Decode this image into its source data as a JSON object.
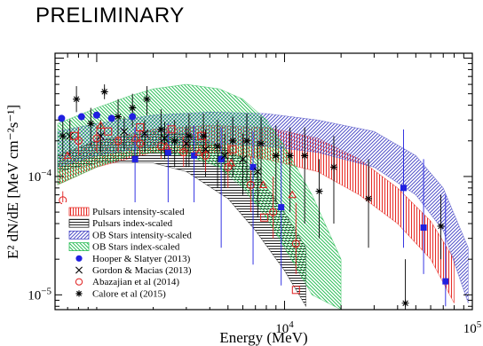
{
  "stamp": "PRELIMINARY",
  "chart_data": {
    "type": "scatter",
    "title": "",
    "xlabel": "Energy (MeV)",
    "ylabel": "E² dN/dE [MeV cm⁻²s⁻¹]",
    "xscale": "log",
    "yscale": "log",
    "xlim": [
      600,
      100000
    ],
    "ylim": [
      7.5e-06,
      0.0011
    ],
    "ticks": {
      "x": [
        {
          "value": 10000,
          "base": "10",
          "exp": "4"
        },
        {
          "value": 100000,
          "base": "10",
          "exp": "5"
        }
      ],
      "y": [
        {
          "value": 0.0001,
          "base": "10",
          "exp": "−4"
        },
        {
          "value": 1e-05,
          "base": "10",
          "exp": "−5"
        }
      ]
    },
    "legend_position": "bottom-left",
    "bands": [
      {
        "name": "Pulsars intensity-scaled",
        "color": "#e8302a",
        "pattern": "vertical",
        "x": [
          620,
          1000,
          2000,
          4000,
          8000,
          15000,
          25000,
          40000,
          60000,
          80000
        ],
        "lower": [
          8.5e-05,
          0.00012,
          0.00016,
          0.00016,
          0.00014,
          0.00011,
          7e-05,
          4e-05,
          2e-05,
          8.5e-06
        ],
        "upper": [
          0.00015,
          0.0002,
          0.00025,
          0.00027,
          0.00026,
          0.00021,
          0.00014,
          8e-05,
          4.2e-05,
          2e-05
        ]
      },
      {
        "name": "Pulsars index-scaled",
        "color": "#222222",
        "pattern": "horizontal",
        "x": [
          620,
          1000,
          2000,
          3000,
          5000,
          7000,
          10000,
          13000
        ],
        "lower": [
          0.00011,
          0.00013,
          0.00013,
          0.00011,
          6.5e-05,
          3.5e-05,
          1.6e-05,
          8e-06
        ],
        "upper": [
          0.00015,
          0.0002,
          0.00024,
          0.00023,
          0.00017,
          0.00011,
          5e-05,
          2.5e-05
        ]
      },
      {
        "name": "OB Stars intensity-scaled",
        "color": "#5050c8",
        "pattern": "diagonal-up",
        "x": [
          620,
          1000,
          2000,
          4000,
          8000,
          15000,
          30000,
          50000,
          70000,
          95000
        ],
        "lower": [
          0.00012,
          0.00015,
          0.00018,
          0.00019,
          0.00018,
          0.00016,
          0.00012,
          7e-05,
          3.5e-05,
          8.5e-06
        ],
        "upper": [
          0.00024,
          0.00028,
          0.00033,
          0.00035,
          0.00034,
          0.0003,
          0.00024,
          0.00015,
          8e-05,
          2.5e-05
        ]
      },
      {
        "name": "OB Stars index-scaled",
        "color": "#2fbf5a",
        "pattern": "diagonal-down",
        "x": [
          620,
          1000,
          1500,
          2000,
          3000,
          4500,
          6000,
          8000,
          10000,
          14000,
          20000
        ],
        "lower": [
          8.5e-05,
          0.00012,
          0.00015,
          0.00016,
          0.00015,
          0.00012,
          8e-05,
          4.5e-05,
          2.5e-05,
          1e-05,
          7.5e-06
        ],
        "upper": [
          0.00028,
          0.00038,
          0.00048,
          0.00055,
          0.0006,
          0.00055,
          0.00045,
          0.0003,
          0.00018,
          7e-05,
          2e-05
        ]
      }
    ],
    "series": [
      {
        "name": "Hooper & Slatyer (2013)",
        "marker": "filled-circle",
        "color": "#2020e0",
        "x": [
          650,
          830,
          1000,
          1200,
          1550
        ],
        "y": [
          0.00031,
          0.00032,
          0.00033,
          0.00031,
          0.00032
        ]
      },
      {
        "name": "Hooper & Slatyer (2013)",
        "marker": "filled-square",
        "color": "#2020e0",
        "x": [
          1600,
          2400,
          3300,
          4600,
          6800,
          9600,
          43000,
          55000,
          72000
        ],
        "y": [
          0.00014,
          0.00016,
          0.00015,
          0.00014,
          0.00012,
          5.5e-05,
          8e-05,
          3.7e-05,
          1.3e-05
        ],
        "err_low": [
          3.5e-05,
          3e-05,
          3e-05,
          2.5e-05,
          1.8e-05,
          1.2e-05,
          2.5e-05,
          1.5e-05,
          8e-06
        ],
        "err_high": [
          0.00026,
          0.00028,
          0.00027,
          0.00026,
          0.00024,
          0.00018,
          0.00025,
          0.00014,
          7e-05
        ]
      },
      {
        "name": "Gordon & Macias (2013)",
        "marker": "cross",
        "color": "#000000",
        "x": [
          720,
          1050,
          1400,
          1800,
          2300,
          3000,
          3800,
          4800,
          6000,
          7200
        ],
        "y": [
          0.00022,
          0.00022,
          0.00024,
          0.00023,
          0.00021,
          0.00019,
          0.00017,
          0.00015,
          0.00014,
          0.00011
        ],
        "err_low": [
          0.00015,
          0.00016,
          0.00017,
          0.00016,
          0.00014,
          0.00012,
          0.0001,
          8e-05,
          7e-05,
          4.5e-05
        ],
        "err_high": [
          0.0003,
          0.0003,
          0.00032,
          0.0003,
          0.00029,
          0.00027,
          0.00025,
          0.00023,
          0.00023,
          0.0002
        ]
      },
      {
        "name": "Abazajian et al (2014)",
        "marker": "open-circle",
        "color": "#e02020",
        "x": [
          660,
          800,
          1000,
          1300,
          1700,
          2200,
          2900,
          3800,
          5000,
          6600,
          8700,
          11500
        ],
        "y": [
          6.3e-05,
          0.0002,
          0.00021,
          0.0002,
          0.00019,
          0.00018,
          0.00016,
          0.00015,
          0.00012,
          8.5e-05,
          5e-05,
          2.7e-05
        ],
        "err_low": [
          5e-05,
          0.00015,
          0.00016,
          0.00016,
          0.00015,
          0.00014,
          0.00012,
          0.00011,
          8e-05,
          5e-05,
          3e-05,
          1.5e-05
        ],
        "err_high": [
          7.5e-05,
          0.00026,
          0.00027,
          0.00026,
          0.00025,
          0.00024,
          0.00022,
          0.00021,
          0.00019,
          0.00015,
          0.0001,
          6e-05
        ]
      },
      {
        "name": "Abazajian et al (2014)",
        "marker": "open-square",
        "color": "#e02020",
        "x": [
          760,
          1150,
          1700,
          2500,
          3600,
          5300,
          7800,
          11500
        ],
        "y": [
          0.00022,
          0.00024,
          0.00026,
          0.00025,
          0.00022,
          0.00017,
          4.5e-05,
          1.1e-05
        ]
      },
      {
        "name": "Abazajian et al (2014)",
        "marker": "open-triangle",
        "color": "#e02020",
        "x": [
          700,
          1050,
          1600,
          2350,
          3500,
          5200,
          7700,
          11000
        ],
        "y": [
          0.00015,
          0.00027,
          0.00021,
          0.00018,
          0.00016,
          0.00013,
          8.5e-05,
          7e-05
        ]
      },
      {
        "name": "Calore et al (2015)",
        "marker": "star",
        "color": "#000000",
        "x": [
          660,
          780,
          930,
          1100,
          1300,
          1550,
          1850,
          2200,
          2600,
          3100,
          3700,
          4400,
          5300,
          6300,
          7500,
          9000,
          10700,
          12800,
          15300,
          18300,
          28000,
          44000,
          68000
        ],
        "y": [
          0.00022,
          0.00045,
          0.00028,
          0.00052,
          0.00032,
          0.00038,
          0.00045,
          0.00025,
          0.0002,
          0.00022,
          0.00022,
          0.00018,
          0.0002,
          0.0002,
          0.00019,
          0.00015,
          0.00015,
          0.00015,
          7.5e-05,
          0.00012,
          6.5e-05,
          8.5e-06,
          3.8e-05
        ],
        "err_low": [
          0.00015,
          0.00035,
          0.00018,
          0.00045,
          0.00022,
          0.00026,
          0.00033,
          0.00015,
          0.00012,
          0.00012,
          0.00012,
          8e-05,
          0.0001,
          9e-05,
          8e-05,
          6e-05,
          5e-05,
          4e-05,
          3e-05,
          4e-05,
          2.5e-05,
          5e-06,
          2e-05
        ],
        "err_high": [
          0.0003,
          0.00058,
          0.00038,
          0.0006,
          0.00045,
          0.0005,
          0.00058,
          0.00037,
          0.0003,
          0.00034,
          0.00034,
          0.0003,
          0.00032,
          0.00034,
          0.00032,
          0.00027,
          0.00026,
          0.00026,
          0.00014,
          0.00022,
          0.00014,
          2e-05,
          7e-05
        ]
      }
    ],
    "legend": [
      {
        "label": "Pulsars intensity-scaled",
        "kind": "band",
        "color": "#e8302a",
        "pattern": "vertical"
      },
      {
        "label": "Pulsars index-scaled",
        "kind": "band",
        "color": "#222222",
        "pattern": "horizontal"
      },
      {
        "label": "OB Stars intensity-scaled",
        "kind": "band",
        "color": "#5050c8",
        "pattern": "diagonal-up"
      },
      {
        "label": "OB Stars index-scaled",
        "kind": "band",
        "color": "#2fbf5a",
        "pattern": "diagonal-down"
      },
      {
        "label": "Hooper & Slatyer (2013)",
        "kind": "marker",
        "marker": "filled-circle",
        "color": "#2020e0"
      },
      {
        "label": "Gordon & Macias (2013)",
        "kind": "marker",
        "marker": "cross",
        "color": "#000000"
      },
      {
        "label": "Abazajian et al (2014)",
        "kind": "marker",
        "marker": "open-circle",
        "color": "#e02020"
      },
      {
        "label": "Calore et al (2015)",
        "kind": "marker",
        "marker": "star",
        "color": "#000000"
      }
    ]
  }
}
